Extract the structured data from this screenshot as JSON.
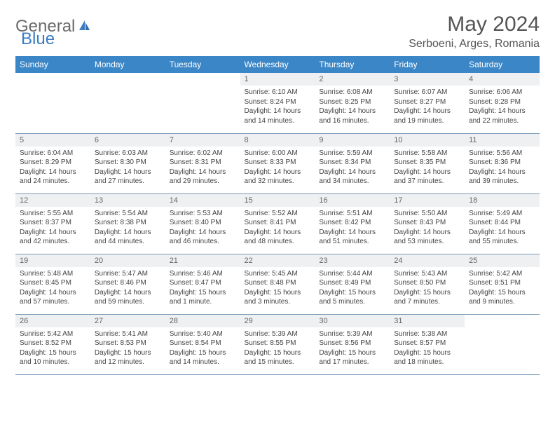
{
  "logo": {
    "general": "General",
    "blue": "Blue"
  },
  "title": "May 2024",
  "location": "Serboeni, Arges, Romania",
  "colors": {
    "header_bg": "#3b86c6",
    "header_text": "#ffffff",
    "daynum_bg": "#eef0f2",
    "border": "#7a9bb8",
    "logo_gray": "#6b6b6b",
    "logo_blue": "#3a7cbf",
    "text": "#444444"
  },
  "fonts": {
    "title_size": 30,
    "location_size": 16,
    "header_size": 12,
    "daynum_size": 11,
    "body_size": 10
  },
  "day_names": [
    "Sunday",
    "Monday",
    "Tuesday",
    "Wednesday",
    "Thursday",
    "Friday",
    "Saturday"
  ],
  "weeks": [
    [
      {
        "n": "",
        "sr": "",
        "ss": "",
        "dl": ""
      },
      {
        "n": "",
        "sr": "",
        "ss": "",
        "dl": ""
      },
      {
        "n": "",
        "sr": "",
        "ss": "",
        "dl": ""
      },
      {
        "n": "1",
        "sr": "Sunrise: 6:10 AM",
        "ss": "Sunset: 8:24 PM",
        "dl": "Daylight: 14 hours and 14 minutes."
      },
      {
        "n": "2",
        "sr": "Sunrise: 6:08 AM",
        "ss": "Sunset: 8:25 PM",
        "dl": "Daylight: 14 hours and 16 minutes."
      },
      {
        "n": "3",
        "sr": "Sunrise: 6:07 AM",
        "ss": "Sunset: 8:27 PM",
        "dl": "Daylight: 14 hours and 19 minutes."
      },
      {
        "n": "4",
        "sr": "Sunrise: 6:06 AM",
        "ss": "Sunset: 8:28 PM",
        "dl": "Daylight: 14 hours and 22 minutes."
      }
    ],
    [
      {
        "n": "5",
        "sr": "Sunrise: 6:04 AM",
        "ss": "Sunset: 8:29 PM",
        "dl": "Daylight: 14 hours and 24 minutes."
      },
      {
        "n": "6",
        "sr": "Sunrise: 6:03 AM",
        "ss": "Sunset: 8:30 PM",
        "dl": "Daylight: 14 hours and 27 minutes."
      },
      {
        "n": "7",
        "sr": "Sunrise: 6:02 AM",
        "ss": "Sunset: 8:31 PM",
        "dl": "Daylight: 14 hours and 29 minutes."
      },
      {
        "n": "8",
        "sr": "Sunrise: 6:00 AM",
        "ss": "Sunset: 8:33 PM",
        "dl": "Daylight: 14 hours and 32 minutes."
      },
      {
        "n": "9",
        "sr": "Sunrise: 5:59 AM",
        "ss": "Sunset: 8:34 PM",
        "dl": "Daylight: 14 hours and 34 minutes."
      },
      {
        "n": "10",
        "sr": "Sunrise: 5:58 AM",
        "ss": "Sunset: 8:35 PM",
        "dl": "Daylight: 14 hours and 37 minutes."
      },
      {
        "n": "11",
        "sr": "Sunrise: 5:56 AM",
        "ss": "Sunset: 8:36 PM",
        "dl": "Daylight: 14 hours and 39 minutes."
      }
    ],
    [
      {
        "n": "12",
        "sr": "Sunrise: 5:55 AM",
        "ss": "Sunset: 8:37 PM",
        "dl": "Daylight: 14 hours and 42 minutes."
      },
      {
        "n": "13",
        "sr": "Sunrise: 5:54 AM",
        "ss": "Sunset: 8:38 PM",
        "dl": "Daylight: 14 hours and 44 minutes."
      },
      {
        "n": "14",
        "sr": "Sunrise: 5:53 AM",
        "ss": "Sunset: 8:40 PM",
        "dl": "Daylight: 14 hours and 46 minutes."
      },
      {
        "n": "15",
        "sr": "Sunrise: 5:52 AM",
        "ss": "Sunset: 8:41 PM",
        "dl": "Daylight: 14 hours and 48 minutes."
      },
      {
        "n": "16",
        "sr": "Sunrise: 5:51 AM",
        "ss": "Sunset: 8:42 PM",
        "dl": "Daylight: 14 hours and 51 minutes."
      },
      {
        "n": "17",
        "sr": "Sunrise: 5:50 AM",
        "ss": "Sunset: 8:43 PM",
        "dl": "Daylight: 14 hours and 53 minutes."
      },
      {
        "n": "18",
        "sr": "Sunrise: 5:49 AM",
        "ss": "Sunset: 8:44 PM",
        "dl": "Daylight: 14 hours and 55 minutes."
      }
    ],
    [
      {
        "n": "19",
        "sr": "Sunrise: 5:48 AM",
        "ss": "Sunset: 8:45 PM",
        "dl": "Daylight: 14 hours and 57 minutes."
      },
      {
        "n": "20",
        "sr": "Sunrise: 5:47 AM",
        "ss": "Sunset: 8:46 PM",
        "dl": "Daylight: 14 hours and 59 minutes."
      },
      {
        "n": "21",
        "sr": "Sunrise: 5:46 AM",
        "ss": "Sunset: 8:47 PM",
        "dl": "Daylight: 15 hours and 1 minute."
      },
      {
        "n": "22",
        "sr": "Sunrise: 5:45 AM",
        "ss": "Sunset: 8:48 PM",
        "dl": "Daylight: 15 hours and 3 minutes."
      },
      {
        "n": "23",
        "sr": "Sunrise: 5:44 AM",
        "ss": "Sunset: 8:49 PM",
        "dl": "Daylight: 15 hours and 5 minutes."
      },
      {
        "n": "24",
        "sr": "Sunrise: 5:43 AM",
        "ss": "Sunset: 8:50 PM",
        "dl": "Daylight: 15 hours and 7 minutes."
      },
      {
        "n": "25",
        "sr": "Sunrise: 5:42 AM",
        "ss": "Sunset: 8:51 PM",
        "dl": "Daylight: 15 hours and 9 minutes."
      }
    ],
    [
      {
        "n": "26",
        "sr": "Sunrise: 5:42 AM",
        "ss": "Sunset: 8:52 PM",
        "dl": "Daylight: 15 hours and 10 minutes."
      },
      {
        "n": "27",
        "sr": "Sunrise: 5:41 AM",
        "ss": "Sunset: 8:53 PM",
        "dl": "Daylight: 15 hours and 12 minutes."
      },
      {
        "n": "28",
        "sr": "Sunrise: 5:40 AM",
        "ss": "Sunset: 8:54 PM",
        "dl": "Daylight: 15 hours and 14 minutes."
      },
      {
        "n": "29",
        "sr": "Sunrise: 5:39 AM",
        "ss": "Sunset: 8:55 PM",
        "dl": "Daylight: 15 hours and 15 minutes."
      },
      {
        "n": "30",
        "sr": "Sunrise: 5:39 AM",
        "ss": "Sunset: 8:56 PM",
        "dl": "Daylight: 15 hours and 17 minutes."
      },
      {
        "n": "31",
        "sr": "Sunrise: 5:38 AM",
        "ss": "Sunset: 8:57 PM",
        "dl": "Daylight: 15 hours and 18 minutes."
      },
      {
        "n": "",
        "sr": "",
        "ss": "",
        "dl": ""
      }
    ]
  ]
}
